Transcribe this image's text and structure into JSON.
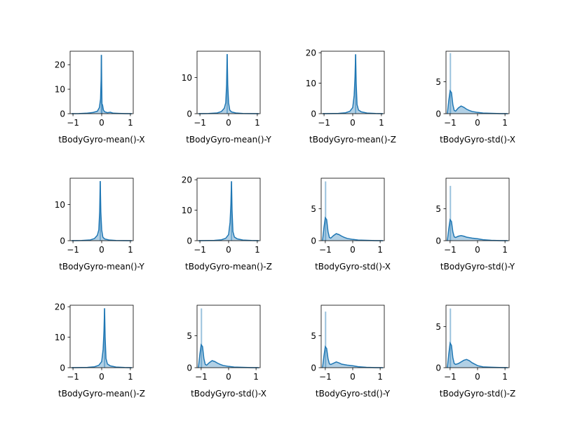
{
  "chart_data": [
    {
      "type": "area",
      "xlabel": "tBodyGyro-mean()-X",
      "xlim": [
        -1.1,
        1.1
      ],
      "ylim": [
        0,
        25.5
      ],
      "x_ticks": [
        -1,
        0,
        1
      ],
      "x_tick_labels": [
        "−1",
        "0",
        "1"
      ],
      "y_ticks": [
        0,
        10,
        20
      ],
      "y_tick_labels": [
        "0",
        "10",
        "20"
      ],
      "line_color": "#1f77b4",
      "fill_color": "#1f77b4",
      "series": [
        {
          "x": [
            -1.05,
            -0.8,
            -0.5,
            -0.3,
            -0.15,
            -0.08,
            -0.04,
            -0.02,
            -0.01,
            0.0,
            0.01,
            0.03,
            0.06,
            0.1,
            0.2,
            0.3,
            0.4,
            0.6,
            0.8,
            1.05
          ],
          "y": [
            0.0,
            0.05,
            0.2,
            0.5,
            1.0,
            2.5,
            6.0,
            14.0,
            24.0,
            12.0,
            4.0,
            3.5,
            1.5,
            0.8,
            0.4,
            0.6,
            0.2,
            0.1,
            0.05,
            0.0
          ]
        }
      ],
      "hist_spikes": [
        {
          "x": -0.01,
          "y": 24.0
        },
        {
          "x": 0.01,
          "y": 4.0
        }
      ]
    },
    {
      "type": "area",
      "xlabel": "tBodyGyro-mean()-Y",
      "xlim": [
        -1.1,
        1.1
      ],
      "ylim": [
        0,
        17.3
      ],
      "x_ticks": [
        -1,
        0,
        1
      ],
      "x_tick_labels": [
        "−1",
        "0",
        "1"
      ],
      "y_ticks": [
        0,
        10
      ],
      "y_tick_labels": [
        "0",
        "10"
      ],
      "line_color": "#1f77b4",
      "fill_color": "#1f77b4",
      "series": [
        {
          "x": [
            -1.05,
            -0.7,
            -0.4,
            -0.25,
            -0.15,
            -0.1,
            -0.07,
            -0.05,
            -0.03,
            0.0,
            0.04,
            0.1,
            0.25,
            0.5,
            1.05
          ],
          "y": [
            0.0,
            0.05,
            0.2,
            0.6,
            1.5,
            3.0,
            8.0,
            16.5,
            8.0,
            3.0,
            1.0,
            0.5,
            0.2,
            0.05,
            0.0
          ]
        }
      ],
      "hist_spikes": [
        {
          "x": -0.05,
          "y": 16.5
        }
      ]
    },
    {
      "type": "area",
      "xlabel": "tBodyGyro-mean()-Z",
      "xlim": [
        -1.1,
        1.1
      ],
      "ylim": [
        0,
        20.5
      ],
      "x_ticks": [
        -1,
        0,
        1
      ],
      "x_tick_labels": [
        "−1",
        "0",
        "1"
      ],
      "y_ticks": [
        0,
        10,
        20
      ],
      "y_tick_labels": [
        "0",
        "10",
        "20"
      ],
      "line_color": "#1f77b4",
      "fill_color": "#1f77b4",
      "series": [
        {
          "x": [
            -1.05,
            -0.5,
            -0.25,
            -0.1,
            0.0,
            0.05,
            0.08,
            0.1,
            0.12,
            0.15,
            0.2,
            0.3,
            0.5,
            0.8,
            1.05
          ],
          "y": [
            0.0,
            0.1,
            0.3,
            0.8,
            2.0,
            6.0,
            12.0,
            19.5,
            10.0,
            3.0,
            1.2,
            0.6,
            0.2,
            0.05,
            0.0
          ]
        }
      ],
      "hist_spikes": [
        {
          "x": 0.1,
          "y": 19.5
        }
      ]
    },
    {
      "type": "area",
      "xlabel": "tBodyGyro-std()-X",
      "xlim": [
        -1.15,
        1.15
      ],
      "ylim": [
        0,
        9.8
      ],
      "x_ticks": [
        -1,
        0,
        1
      ],
      "x_tick_labels": [
        "−1",
        "0",
        "1"
      ],
      "y_ticks": [
        0,
        5
      ],
      "y_tick_labels": [
        "0",
        "5"
      ],
      "line_color": "#1f77b4",
      "fill_color": "#1f77b4",
      "series": [
        {
          "x": [
            -1.1,
            -1.05,
            -1.0,
            -0.95,
            -0.9,
            -0.85,
            -0.8,
            -0.7,
            -0.6,
            -0.5,
            -0.4,
            -0.3,
            -0.2,
            0.0,
            0.2,
            0.5,
            0.8,
            1.1
          ],
          "y": [
            0.0,
            2.0,
            3.6,
            3.3,
            1.4,
            0.5,
            0.4,
            0.9,
            1.2,
            1.0,
            0.7,
            0.5,
            0.35,
            0.2,
            0.1,
            0.05,
            0.02,
            0.0
          ]
        }
      ],
      "hist_spikes": [
        {
          "x": -0.99,
          "y": 9.5
        }
      ]
    },
    {
      "type": "area",
      "xlabel": "tBodyGyro-mean()-Y",
      "xlim": [
        -1.1,
        1.1
      ],
      "ylim": [
        0,
        17.3
      ],
      "x_ticks": [
        -1,
        0,
        1
      ],
      "x_tick_labels": [
        "−1",
        "0",
        "1"
      ],
      "y_ticks": [
        0,
        10
      ],
      "y_tick_labels": [
        "0",
        "10"
      ],
      "line_color": "#1f77b4",
      "fill_color": "#1f77b4",
      "series": [
        {
          "x": [
            -1.05,
            -0.7,
            -0.4,
            -0.25,
            -0.15,
            -0.1,
            -0.07,
            -0.05,
            -0.03,
            0.0,
            0.04,
            0.1,
            0.25,
            0.5,
            1.05
          ],
          "y": [
            0.0,
            0.05,
            0.2,
            0.6,
            1.5,
            3.0,
            8.0,
            16.5,
            8.0,
            3.0,
            1.0,
            0.5,
            0.2,
            0.05,
            0.0
          ]
        }
      ],
      "hist_spikes": [
        {
          "x": -0.05,
          "y": 16.5
        }
      ]
    },
    {
      "type": "area",
      "xlabel": "tBodyGyro-mean()-Z",
      "xlim": [
        -1.1,
        1.1
      ],
      "ylim": [
        0,
        20.5
      ],
      "x_ticks": [
        -1,
        0,
        1
      ],
      "x_tick_labels": [
        "−1",
        "0",
        "1"
      ],
      "y_ticks": [
        0,
        10,
        20
      ],
      "y_tick_labels": [
        "0",
        "10",
        "20"
      ],
      "line_color": "#1f77b4",
      "fill_color": "#1f77b4",
      "series": [
        {
          "x": [
            -1.05,
            -0.5,
            -0.25,
            -0.1,
            0.0,
            0.05,
            0.08,
            0.1,
            0.12,
            0.15,
            0.2,
            0.3,
            0.5,
            0.8,
            1.05
          ],
          "y": [
            0.0,
            0.1,
            0.3,
            0.8,
            2.0,
            6.0,
            12.0,
            19.5,
            10.0,
            3.0,
            1.2,
            0.6,
            0.2,
            0.05,
            0.0
          ]
        }
      ],
      "hist_spikes": [
        {
          "x": 0.1,
          "y": 19.5
        }
      ]
    },
    {
      "type": "area",
      "xlabel": "tBodyGyro-std()-X",
      "xlim": [
        -1.15,
        1.15
      ],
      "ylim": [
        0,
        9.8
      ],
      "x_ticks": [
        -1,
        0,
        1
      ],
      "x_tick_labels": [
        "−1",
        "0",
        "1"
      ],
      "y_ticks": [
        0,
        5
      ],
      "y_tick_labels": [
        "0",
        "5"
      ],
      "line_color": "#1f77b4",
      "fill_color": "#1f77b4",
      "series": [
        {
          "x": [
            -1.1,
            -1.05,
            -1.0,
            -0.95,
            -0.9,
            -0.85,
            -0.8,
            -0.7,
            -0.6,
            -0.5,
            -0.4,
            -0.3,
            -0.2,
            0.0,
            0.2,
            0.5,
            0.8,
            1.1
          ],
          "y": [
            0.0,
            2.0,
            3.6,
            3.3,
            1.4,
            0.5,
            0.4,
            0.8,
            1.1,
            0.95,
            0.7,
            0.5,
            0.35,
            0.2,
            0.1,
            0.05,
            0.02,
            0.0
          ]
        }
      ],
      "hist_spikes": [
        {
          "x": -0.99,
          "y": 9.3
        }
      ]
    },
    {
      "type": "area",
      "xlabel": "tBodyGyro-std()-Y",
      "xlim": [
        -1.15,
        1.15
      ],
      "ylim": [
        0,
        9.8
      ],
      "x_ticks": [
        -1,
        0,
        1
      ],
      "x_tick_labels": [
        "−1",
        "0",
        "1"
      ],
      "y_ticks": [
        0,
        5
      ],
      "y_tick_labels": [
        "0",
        "5"
      ],
      "line_color": "#1f77b4",
      "fill_color": "#1f77b4",
      "series": [
        {
          "x": [
            -1.1,
            -1.05,
            -1.0,
            -0.95,
            -0.9,
            -0.85,
            -0.8,
            -0.7,
            -0.6,
            -0.5,
            -0.4,
            -0.2,
            0.0,
            0.2,
            0.5,
            0.8,
            1.1
          ],
          "y": [
            0.0,
            1.8,
            3.3,
            3.0,
            1.4,
            0.6,
            0.5,
            0.7,
            0.8,
            0.7,
            0.55,
            0.4,
            0.3,
            0.15,
            0.05,
            0.02,
            0.0
          ]
        }
      ],
      "hist_spikes": [
        {
          "x": -0.99,
          "y": 8.6
        }
      ]
    },
    {
      "type": "area",
      "xlabel": "tBodyGyro-mean()-Z",
      "xlim": [
        -1.1,
        1.1
      ],
      "ylim": [
        0,
        20.5
      ],
      "x_ticks": [
        -1,
        0,
        1
      ],
      "x_tick_labels": [
        "−1",
        "0",
        "1"
      ],
      "y_ticks": [
        0,
        10,
        20
      ],
      "y_tick_labels": [
        "0",
        "10",
        "20"
      ],
      "line_color": "#1f77b4",
      "fill_color": "#1f77b4",
      "series": [
        {
          "x": [
            -1.05,
            -0.5,
            -0.25,
            -0.1,
            0.0,
            0.05,
            0.08,
            0.1,
            0.12,
            0.15,
            0.2,
            0.3,
            0.5,
            0.8,
            1.05
          ],
          "y": [
            0.0,
            0.1,
            0.3,
            0.8,
            2.0,
            6.0,
            12.0,
            19.5,
            10.0,
            3.0,
            1.2,
            0.6,
            0.2,
            0.05,
            0.0
          ]
        }
      ],
      "hist_spikes": [
        {
          "x": 0.1,
          "y": 19.5
        }
      ]
    },
    {
      "type": "area",
      "xlabel": "tBodyGyro-std()-X",
      "xlim": [
        -1.15,
        1.15
      ],
      "ylim": [
        0,
        9.8
      ],
      "x_ticks": [
        -1,
        0,
        1
      ],
      "x_tick_labels": [
        "−1",
        "0",
        "1"
      ],
      "y_ticks": [
        0,
        5
      ],
      "y_tick_labels": [
        "0",
        "5"
      ],
      "line_color": "#1f77b4",
      "fill_color": "#1f77b4",
      "series": [
        {
          "x": [
            -1.1,
            -1.05,
            -1.0,
            -0.95,
            -0.9,
            -0.85,
            -0.8,
            -0.7,
            -0.6,
            -0.5,
            -0.4,
            -0.3,
            -0.2,
            0.0,
            0.2,
            0.5,
            0.8,
            1.1
          ],
          "y": [
            0.0,
            2.0,
            3.6,
            3.3,
            1.4,
            0.5,
            0.4,
            0.8,
            1.1,
            0.95,
            0.7,
            0.5,
            0.35,
            0.2,
            0.1,
            0.05,
            0.02,
            0.0
          ]
        }
      ],
      "hist_spikes": [
        {
          "x": -0.99,
          "y": 9.3
        }
      ]
    },
    {
      "type": "area",
      "xlabel": "tBodyGyro-std()-Y",
      "xlim": [
        -1.15,
        1.15
      ],
      "ylim": [
        0,
        9.8
      ],
      "x_ticks": [
        -1,
        0,
        1
      ],
      "x_tick_labels": [
        "−1",
        "0",
        "1"
      ],
      "y_ticks": [
        0,
        5
      ],
      "y_tick_labels": [
        "0",
        "5"
      ],
      "line_color": "#1f77b4",
      "fill_color": "#1f77b4",
      "series": [
        {
          "x": [
            -1.1,
            -1.05,
            -1.0,
            -0.95,
            -0.9,
            -0.85,
            -0.8,
            -0.7,
            -0.6,
            -0.5,
            -0.4,
            -0.2,
            0.0,
            0.2,
            0.5,
            0.8,
            1.1
          ],
          "y": [
            0.0,
            1.8,
            3.3,
            3.0,
            1.4,
            0.6,
            0.5,
            0.7,
            0.9,
            0.75,
            0.55,
            0.4,
            0.3,
            0.15,
            0.05,
            0.02,
            0.0
          ]
        }
      ],
      "hist_spikes": [
        {
          "x": -0.99,
          "y": 8.8
        }
      ]
    },
    {
      "type": "area",
      "xlabel": "tBodyGyro-std()-Z",
      "xlim": [
        -1.15,
        1.15
      ],
      "ylim": [
        0,
        7.6
      ],
      "x_ticks": [
        -1,
        0,
        1
      ],
      "x_tick_labels": [
        "−1",
        "0",
        "1"
      ],
      "y_ticks": [
        0,
        5
      ],
      "y_tick_labels": [
        "0",
        "5"
      ],
      "line_color": "#1f77b4",
      "fill_color": "#1f77b4",
      "series": [
        {
          "x": [
            -1.1,
            -1.05,
            -1.0,
            -0.95,
            -0.9,
            -0.85,
            -0.8,
            -0.7,
            -0.6,
            -0.5,
            -0.4,
            -0.3,
            -0.2,
            0.0,
            0.2,
            0.5,
            0.8,
            1.1
          ],
          "y": [
            0.0,
            1.6,
            3.0,
            2.7,
            1.2,
            0.5,
            0.4,
            0.5,
            0.7,
            0.9,
            1.0,
            0.85,
            0.6,
            0.25,
            0.1,
            0.05,
            0.02,
            0.0
          ]
        }
      ],
      "hist_spikes": [
        {
          "x": -0.99,
          "y": 7.2
        }
      ]
    }
  ]
}
